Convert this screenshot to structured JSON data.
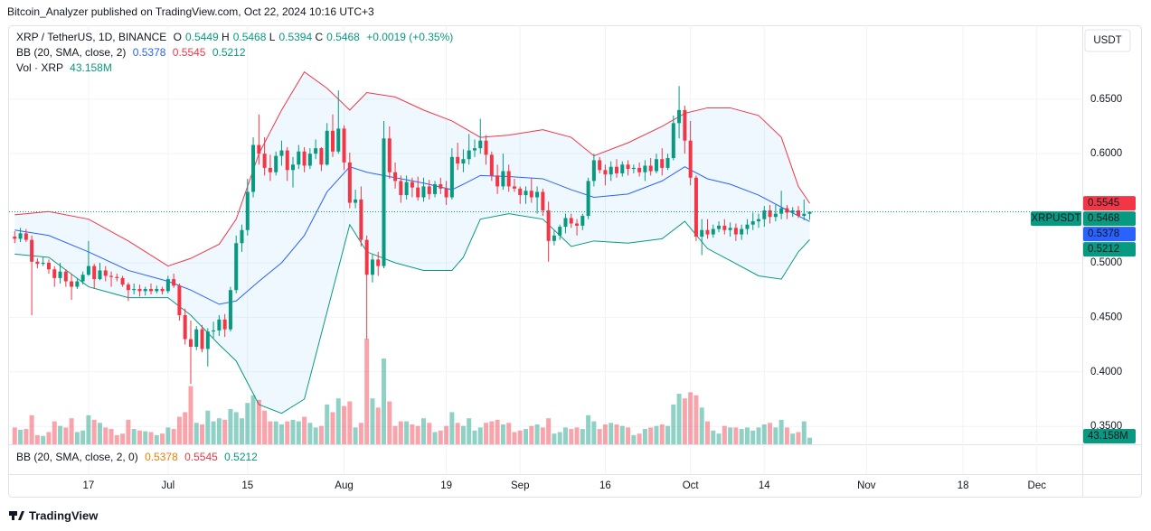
{
  "chart_data": {
    "type": "candlestick",
    "published": "Bitcoin_Analyzer published on TradingView.com, Oct 22, 2024 10:16 UTC+3",
    "footer": "TradingView",
    "currency": "USDT",
    "price_label": "XRPUSDT",
    "legend": {
      "symbol": "XRP / TetherUS, 1D, BINANCE",
      "ohlc_labels": [
        "O",
        "H",
        "L",
        "C"
      ],
      "change": "+0.0019 (+0.35%)",
      "bb": "BB (20, SMA, close, 2)",
      "vol": "Vol · XRP"
    },
    "pane2_title": "BB (20, SMA, close, 2, 0)",
    "up_color": "#089981",
    "down_color": "#f23645",
    "volume_up_color": "rgba(8,153,129,0.45)",
    "volume_down_color": "rgba(242,54,69,0.45)",
    "basis_color": "#2962ff",
    "upper_color": "#f23645",
    "lower_color": "#089981",
    "band_fill": "rgba(33,150,243,0.07)",
    "grid": true,
    "xlim": [
      "Jun 3",
      "Dec 9"
    ],
    "xticks": [
      {
        "value": "Jun 17",
        "label": "17"
      },
      {
        "value": "Jul 1",
        "label": "Jul"
      },
      {
        "value": "Jul 15",
        "label": "15"
      },
      {
        "value": "Aug 1",
        "label": "Aug"
      },
      {
        "value": "Aug 19",
        "label": "19"
      },
      {
        "value": "Sep 1",
        "label": "Sep"
      },
      {
        "value": "Sep 16",
        "label": "16"
      },
      {
        "value": "Oct 1",
        "label": "Oct"
      },
      {
        "value": "Oct 14",
        "label": "14"
      },
      {
        "value": "Nov 1",
        "label": "Nov"
      },
      {
        "value": "Nov 18",
        "label": "18"
      },
      {
        "value": "Dec 1",
        "label": "Dec"
      }
    ],
    "ylim": [
      0.3336,
      0.7177
    ],
    "yticks": [
      {
        "value": 0.65,
        "label": "0.6500"
      },
      {
        "value": 0.6,
        "label": "0.6000"
      },
      {
        "value": 0.5,
        "label": "0.5000"
      },
      {
        "value": 0.45,
        "label": "0.4500"
      },
      {
        "value": 0.4,
        "label": "0.4000"
      },
      {
        "value": 0.35,
        "label": "0.3500"
      }
    ],
    "x": [
      "Jun 4",
      "Jun 5",
      "Jun 6",
      "Jun 7",
      "Jun 8",
      "Jun 9",
      "Jun 10",
      "Jun 11",
      "Jun 12",
      "Jun 13",
      "Jun 14",
      "Jun 15",
      "Jun 16",
      "Jun 17",
      "Jun 18",
      "Jun 19",
      "Jun 20",
      "Jun 21",
      "Jun 22",
      "Jun 23",
      "Jun 24",
      "Jun 25",
      "Jun 26",
      "Jun 27",
      "Jun 28",
      "Jun 29",
      "Jun 30",
      "Jul 1",
      "Jul 2",
      "Jul 3",
      "Jul 4",
      "Jul 5",
      "Jul 6",
      "Jul 7",
      "Jul 8",
      "Jul 9",
      "Jul 10",
      "Jul 11",
      "Jul 12",
      "Jul 13",
      "Jul 14",
      "Jul 15",
      "Jul 16",
      "Jul 17",
      "Jul 18",
      "Jul 19",
      "Jul 20",
      "Jul 21",
      "Jul 22",
      "Jul 23",
      "Jul 24",
      "Jul 25",
      "Jul 26",
      "Jul 27",
      "Jul 28",
      "Jul 29",
      "Jul 30",
      "Jul 31",
      "Aug 1",
      "Aug 2",
      "Aug 3",
      "Aug 4",
      "Aug 5",
      "Aug 6",
      "Aug 7",
      "Aug 8",
      "Aug 9",
      "Aug 10",
      "Aug 11",
      "Aug 12",
      "Aug 13",
      "Aug 14",
      "Aug 15",
      "Aug 16",
      "Aug 17",
      "Aug 18",
      "Aug 19",
      "Aug 20",
      "Aug 21",
      "Aug 22",
      "Aug 23",
      "Aug 24",
      "Aug 25",
      "Aug 26",
      "Aug 27",
      "Aug 28",
      "Aug 29",
      "Aug 30",
      "Aug 31",
      "Sep 1",
      "Sep 2",
      "Sep 3",
      "Sep 4",
      "Sep 5",
      "Sep 6",
      "Sep 7",
      "Sep 8",
      "Sep 9",
      "Sep 10",
      "Sep 11",
      "Sep 12",
      "Sep 13",
      "Sep 14",
      "Sep 15",
      "Sep 16",
      "Sep 17",
      "Sep 18",
      "Sep 19",
      "Sep 20",
      "Sep 21",
      "Sep 22",
      "Sep 23",
      "Sep 24",
      "Sep 25",
      "Sep 26",
      "Sep 27",
      "Sep 28",
      "Sep 29",
      "Sep 30",
      "Oct 1",
      "Oct 2",
      "Oct 3",
      "Oct 4",
      "Oct 5",
      "Oct 6",
      "Oct 7",
      "Oct 8",
      "Oct 9",
      "Oct 10",
      "Oct 11",
      "Oct 12",
      "Oct 13",
      "Oct 14",
      "Oct 15",
      "Oct 16",
      "Oct 17",
      "Oct 18",
      "Oct 19",
      "Oct 20",
      "Oct 21",
      "Oct 22"
    ],
    "ohlc": [
      [
        0.524,
        0.529,
        0.518,
        0.522
      ],
      [
        0.522,
        0.532,
        0.519,
        0.527
      ],
      [
        0.527,
        0.531,
        0.519,
        0.521
      ],
      [
        0.521,
        0.525,
        0.452,
        0.501
      ],
      [
        0.501,
        0.504,
        0.495,
        0.499
      ],
      [
        0.499,
        0.505,
        0.497,
        0.5
      ],
      [
        0.5,
        0.503,
        0.49,
        0.494
      ],
      [
        0.494,
        0.497,
        0.478,
        0.486
      ],
      [
        0.486,
        0.5,
        0.481,
        0.492
      ],
      [
        0.492,
        0.494,
        0.478,
        0.483
      ],
      [
        0.483,
        0.49,
        0.466,
        0.478
      ],
      [
        0.478,
        0.486,
        0.476,
        0.483
      ],
      [
        0.483,
        0.492,
        0.48,
        0.489
      ],
      [
        0.489,
        0.52,
        0.488,
        0.497
      ],
      [
        0.497,
        0.499,
        0.476,
        0.485
      ],
      [
        0.485,
        0.5,
        0.484,
        0.493
      ],
      [
        0.493,
        0.497,
        0.483,
        0.488
      ],
      [
        0.488,
        0.492,
        0.478,
        0.487
      ],
      [
        0.487,
        0.49,
        0.483,
        0.486
      ],
      [
        0.486,
        0.488,
        0.478,
        0.48
      ],
      [
        0.48,
        0.482,
        0.465,
        0.475
      ],
      [
        0.475,
        0.481,
        0.471,
        0.476
      ],
      [
        0.476,
        0.48,
        0.469,
        0.474
      ],
      [
        0.474,
        0.478,
        0.47,
        0.476
      ],
      [
        0.476,
        0.481,
        0.471,
        0.474
      ],
      [
        0.474,
        0.479,
        0.472,
        0.476
      ],
      [
        0.476,
        0.478,
        0.471,
        0.474
      ],
      [
        0.474,
        0.488,
        0.472,
        0.485
      ],
      [
        0.485,
        0.49,
        0.477,
        0.479
      ],
      [
        0.479,
        0.481,
        0.447,
        0.452
      ],
      [
        0.452,
        0.458,
        0.425,
        0.43
      ],
      [
        0.43,
        0.447,
        0.389,
        0.423
      ],
      [
        0.423,
        0.442,
        0.42,
        0.439
      ],
      [
        0.439,
        0.443,
        0.418,
        0.421
      ],
      [
        0.421,
        0.44,
        0.405,
        0.437
      ],
      [
        0.437,
        0.446,
        0.431,
        0.438
      ],
      [
        0.438,
        0.452,
        0.433,
        0.448
      ],
      [
        0.448,
        0.453,
        0.432,
        0.439
      ],
      [
        0.439,
        0.478,
        0.437,
        0.475
      ],
      [
        0.475,
        0.525,
        0.472,
        0.518
      ],
      [
        0.518,
        0.535,
        0.51,
        0.53
      ],
      [
        0.53,
        0.577,
        0.525,
        0.565
      ],
      [
        0.565,
        0.615,
        0.56,
        0.608
      ],
      [
        0.608,
        0.636,
        0.59,
        0.6
      ],
      [
        0.6,
        0.615,
        0.58,
        0.587
      ],
      [
        0.587,
        0.599,
        0.575,
        0.583
      ],
      [
        0.583,
        0.602,
        0.58,
        0.598
      ],
      [
        0.598,
        0.612,
        0.589,
        0.603
      ],
      [
        0.603,
        0.606,
        0.575,
        0.585
      ],
      [
        0.585,
        0.597,
        0.569,
        0.59
      ],
      [
        0.59,
        0.608,
        0.586,
        0.602
      ],
      [
        0.602,
        0.606,
        0.583,
        0.589
      ],
      [
        0.589,
        0.605,
        0.586,
        0.6
      ],
      [
        0.6,
        0.613,
        0.595,
        0.605
      ],
      [
        0.605,
        0.606,
        0.584,
        0.59
      ],
      [
        0.59,
        0.628,
        0.589,
        0.621
      ],
      [
        0.621,
        0.636,
        0.597,
        0.602
      ],
      [
        0.602,
        0.658,
        0.6,
        0.623
      ],
      [
        0.623,
        0.626,
        0.585,
        0.592
      ],
      [
        0.592,
        0.601,
        0.55,
        0.555
      ],
      [
        0.555,
        0.567,
        0.55,
        0.558
      ],
      [
        0.558,
        0.57,
        0.515,
        0.521
      ],
      [
        0.521,
        0.525,
        0.43,
        0.489
      ],
      [
        0.489,
        0.508,
        0.482,
        0.503
      ],
      [
        0.503,
        0.51,
        0.488,
        0.497
      ],
      [
        0.497,
        0.63,
        0.495,
        0.614
      ],
      [
        0.614,
        0.625,
        0.577,
        0.583
      ],
      [
        0.583,
        0.592,
        0.568,
        0.575
      ],
      [
        0.575,
        0.58,
        0.555,
        0.562
      ],
      [
        0.562,
        0.58,
        0.558,
        0.574
      ],
      [
        0.574,
        0.578,
        0.56,
        0.569
      ],
      [
        0.569,
        0.579,
        0.557,
        0.56
      ],
      [
        0.56,
        0.578,
        0.556,
        0.57
      ],
      [
        0.57,
        0.576,
        0.558,
        0.563
      ],
      [
        0.563,
        0.575,
        0.56,
        0.572
      ],
      [
        0.572,
        0.578,
        0.563,
        0.568
      ],
      [
        0.568,
        0.575,
        0.553,
        0.56
      ],
      [
        0.56,
        0.605,
        0.558,
        0.597
      ],
      [
        0.597,
        0.61,
        0.585,
        0.591
      ],
      [
        0.591,
        0.604,
        0.583,
        0.595
      ],
      [
        0.595,
        0.618,
        0.59,
        0.603
      ],
      [
        0.603,
        0.613,
        0.597,
        0.605
      ],
      [
        0.605,
        0.632,
        0.6,
        0.612
      ],
      [
        0.612,
        0.617,
        0.59,
        0.599
      ],
      [
        0.599,
        0.602,
        0.575,
        0.58
      ],
      [
        0.58,
        0.59,
        0.563,
        0.57
      ],
      [
        0.57,
        0.6,
        0.567,
        0.584
      ],
      [
        0.584,
        0.59,
        0.565,
        0.57
      ],
      [
        0.57,
        0.577,
        0.565,
        0.568
      ],
      [
        0.568,
        0.57,
        0.554,
        0.562
      ],
      [
        0.562,
        0.57,
        0.554,
        0.566
      ],
      [
        0.566,
        0.578,
        0.555,
        0.56
      ],
      [
        0.56,
        0.57,
        0.545,
        0.565
      ],
      [
        0.565,
        0.568,
        0.543,
        0.548
      ],
      [
        0.548,
        0.556,
        0.501,
        0.52
      ],
      [
        0.52,
        0.53,
        0.516,
        0.525
      ],
      [
        0.525,
        0.535,
        0.521,
        0.533
      ],
      [
        0.533,
        0.545,
        0.527,
        0.541
      ],
      [
        0.541,
        0.545,
        0.532,
        0.536
      ],
      [
        0.536,
        0.54,
        0.525,
        0.534
      ],
      [
        0.534,
        0.545,
        0.53,
        0.543
      ],
      [
        0.543,
        0.578,
        0.54,
        0.575
      ],
      [
        0.575,
        0.6,
        0.57,
        0.594
      ],
      [
        0.594,
        0.597,
        0.582,
        0.585
      ],
      [
        0.585,
        0.59,
        0.571,
        0.581
      ],
      [
        0.581,
        0.593,
        0.575,
        0.588
      ],
      [
        0.588,
        0.595,
        0.578,
        0.582
      ],
      [
        0.582,
        0.593,
        0.579,
        0.59
      ],
      [
        0.59,
        0.594,
        0.58,
        0.586
      ],
      [
        0.586,
        0.59,
        0.582,
        0.587
      ],
      [
        0.587,
        0.592,
        0.579,
        0.583
      ],
      [
        0.583,
        0.594,
        0.575,
        0.589
      ],
      [
        0.589,
        0.596,
        0.58,
        0.584
      ],
      [
        0.584,
        0.6,
        0.582,
        0.595
      ],
      [
        0.595,
        0.605,
        0.58,
        0.587
      ],
      [
        0.587,
        0.6,
        0.585,
        0.596
      ],
      [
        0.596,
        0.635,
        0.594,
        0.628
      ],
      [
        0.628,
        0.662,
        0.614,
        0.64
      ],
      [
        0.64,
        0.644,
        0.6,
        0.612
      ],
      [
        0.612,
        0.63,
        0.571,
        0.578
      ],
      [
        0.578,
        0.58,
        0.52,
        0.524
      ],
      [
        0.524,
        0.54,
        0.507,
        0.53
      ],
      [
        0.53,
        0.54,
        0.522,
        0.526
      ],
      [
        0.526,
        0.535,
        0.523,
        0.531
      ],
      [
        0.531,
        0.538,
        0.528,
        0.534
      ],
      [
        0.534,
        0.54,
        0.526,
        0.53
      ],
      [
        0.53,
        0.537,
        0.524,
        0.532
      ],
      [
        0.532,
        0.536,
        0.52,
        0.526
      ],
      [
        0.526,
        0.535,
        0.521,
        0.531
      ],
      [
        0.531,
        0.54,
        0.526,
        0.535
      ],
      [
        0.535,
        0.546,
        0.53,
        0.538
      ],
      [
        0.538,
        0.545,
        0.532,
        0.54
      ],
      [
        0.54,
        0.552,
        0.533,
        0.548
      ],
      [
        0.548,
        0.553,
        0.536,
        0.542
      ],
      [
        0.542,
        0.553,
        0.538,
        0.545
      ],
      [
        0.545,
        0.566,
        0.54,
        0.55
      ],
      [
        0.55,
        0.553,
        0.54,
        0.546
      ],
      [
        0.546,
        0.551,
        0.542,
        0.548
      ],
      [
        0.548,
        0.552,
        0.541,
        0.543
      ],
      [
        0.543,
        0.558,
        0.539,
        0.5449
      ],
      [
        0.5449,
        0.5468,
        0.5394,
        0.5468
      ]
    ],
    "volume": [
      110,
      95,
      100,
      190,
      60,
      55,
      80,
      150,
      120,
      110,
      170,
      80,
      90,
      190,
      160,
      140,
      110,
      100,
      60,
      70,
      160,
      100,
      90,
      85,
      80,
      60,
      70,
      110,
      100,
      180,
      210,
      380,
      140,
      130,
      220,
      150,
      170,
      160,
      230,
      210,
      170,
      270,
      320,
      290,
      220,
      150,
      150,
      130,
      150,
      160,
      150,
      180,
      140,
      110,
      120,
      260,
      210,
      300,
      250,
      280,
      110,
      140,
      690,
      300,
      240,
      560,
      280,
      120,
      150,
      150,
      130,
      120,
      170,
      140,
      80,
      90,
      120,
      210,
      140,
      120,
      170,
      90,
      110,
      140,
      150,
      160,
      130,
      140,
      80,
      90,
      100,
      120,
      130,
      110,
      170,
      70,
      80,
      110,
      100,
      110,
      100,
      190,
      150,
      100,
      130,
      140,
      130,
      120,
      110,
      60,
      70,
      100,
      110,
      120,
      130,
      120,
      260,
      330,
      300,
      340,
      320,
      240,
      150,
      90,
      70,
      120,
      110,
      110,
      100,
      110,
      90,
      110,
      130,
      140,
      110,
      160,
      110,
      70,
      80,
      150,
      43.158
    ],
    "volume_last_label": "43.158M",
    "bb": {
      "x": [
        "Jun 4",
        "Jun 10",
        "Jun 17",
        "Jun 24",
        "Jul 1",
        "Jul 5",
        "Jul 10",
        "Jul 13",
        "Jul 17",
        "Jul 21",
        "Jul 25",
        "Jul 29",
        "Aug 2",
        "Aug 5",
        "Aug 10",
        "Aug 15",
        "Aug 20",
        "Aug 22",
        "Aug 25",
        "Aug 30",
        "Sep 5",
        "Sep 10",
        "Sep 14",
        "Sep 20",
        "Sep 26",
        "Sep 30",
        "Oct 4",
        "Oct 8",
        "Oct 13",
        "Oct 17",
        "Oct 20",
        "Oct 22"
      ],
      "upper": [
        0.544,
        0.547,
        0.54,
        0.52,
        0.497,
        0.504,
        0.517,
        0.54,
        0.6,
        0.64,
        0.675,
        0.66,
        0.64,
        0.656,
        0.652,
        0.64,
        0.63,
        0.624,
        0.615,
        0.617,
        0.622,
        0.615,
        0.598,
        0.61,
        0.625,
        0.637,
        0.642,
        0.642,
        0.635,
        0.615,
        0.57,
        0.5545
      ],
      "basis": [
        0.53,
        0.525,
        0.51,
        0.493,
        0.483,
        0.475,
        0.462,
        0.465,
        0.483,
        0.5,
        0.525,
        0.565,
        0.588,
        0.583,
        0.578,
        0.573,
        0.567,
        0.572,
        0.58,
        0.579,
        0.577,
        0.567,
        0.56,
        0.563,
        0.575,
        0.588,
        0.577,
        0.572,
        0.562,
        0.551,
        0.543,
        0.5378
      ],
      "lower": [
        0.508,
        0.505,
        0.478,
        0.468,
        0.468,
        0.452,
        0.425,
        0.41,
        0.37,
        0.362,
        0.375,
        0.455,
        0.535,
        0.51,
        0.5,
        0.493,
        0.493,
        0.505,
        0.54,
        0.545,
        0.54,
        0.515,
        0.52,
        0.518,
        0.522,
        0.538,
        0.513,
        0.502,
        0.488,
        0.485,
        0.51,
        0.5212
      ]
    }
  }
}
